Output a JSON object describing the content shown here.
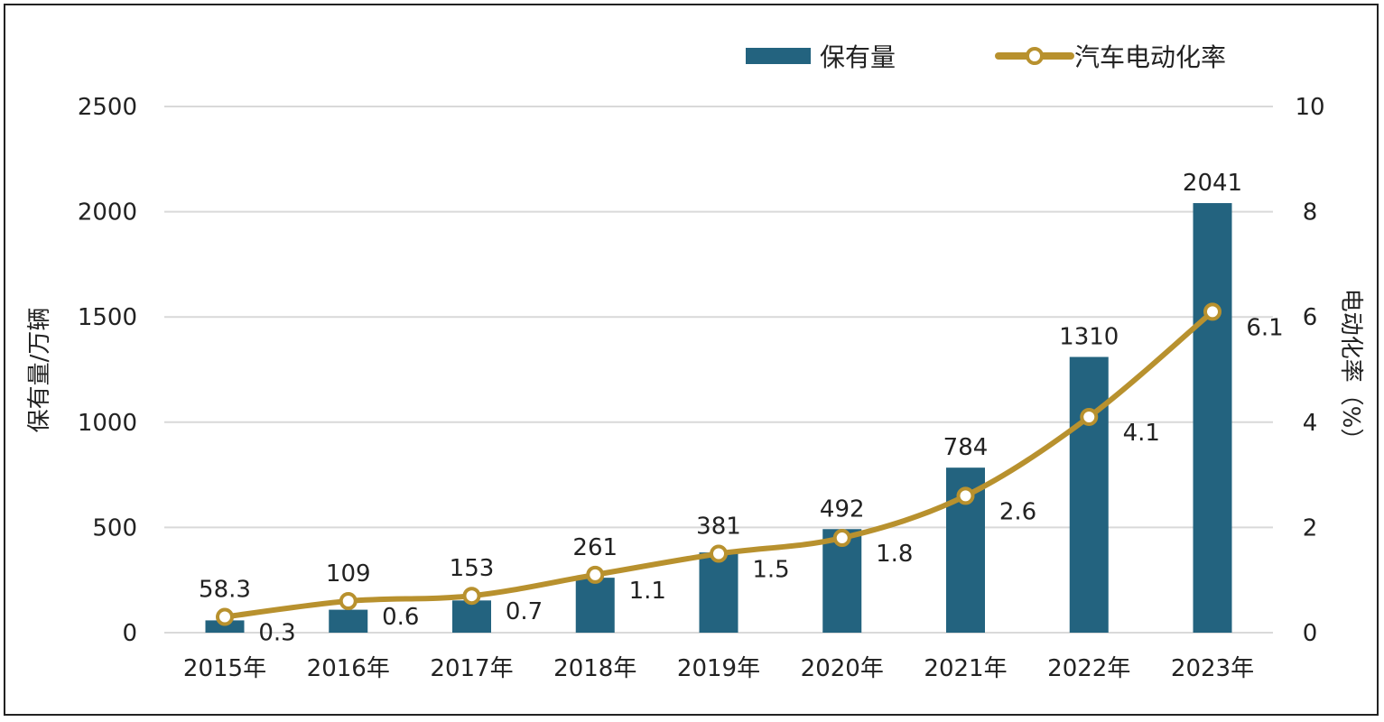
{
  "colors": {
    "bar": "#23637f",
    "line": "#b8912e",
    "grid": "#d9d9d9",
    "text": "#222222"
  },
  "legend": {
    "bar_label": "保有量",
    "line_label": "汽车电动化率"
  },
  "chart_data": {
    "type": "bar+line",
    "categories": [
      "2015年",
      "2016年",
      "2017年",
      "2018年",
      "2019年",
      "2020年",
      "2021年",
      "2022年",
      "2023年"
    ],
    "series": [
      {
        "name": "保有量",
        "type": "bar",
        "axis": "left",
        "values": [
          58.3,
          109,
          153,
          261,
          381,
          492,
          784,
          1310,
          2041
        ],
        "labels": [
          "58.3",
          "109",
          "153",
          "261",
          "381",
          "492",
          "784",
          "1310",
          "2041"
        ]
      },
      {
        "name": "汽车电动化率",
        "type": "line",
        "axis": "right",
        "values": [
          0.3,
          0.6,
          0.7,
          1.1,
          1.5,
          1.8,
          2.6,
          4.1,
          6.1
        ],
        "labels": [
          "0.3",
          "0.6",
          "0.7",
          "1.1",
          "1.5",
          "1.8",
          "2.6",
          "4.1",
          "6.1"
        ]
      }
    ],
    "ylabel_left": "保有量/万辆",
    "ylabel_right": "电动化率（%）",
    "ylim_left": [
      0,
      2500
    ],
    "yticks_left": [
      "0",
      "500",
      "1000",
      "1500",
      "2000",
      "2500"
    ],
    "ylim_right": [
      0,
      10
    ],
    "yticks_right": [
      "0",
      "2",
      "4",
      "6",
      "8",
      "10"
    ],
    "grid": true,
    "legend_position": "top-right"
  }
}
